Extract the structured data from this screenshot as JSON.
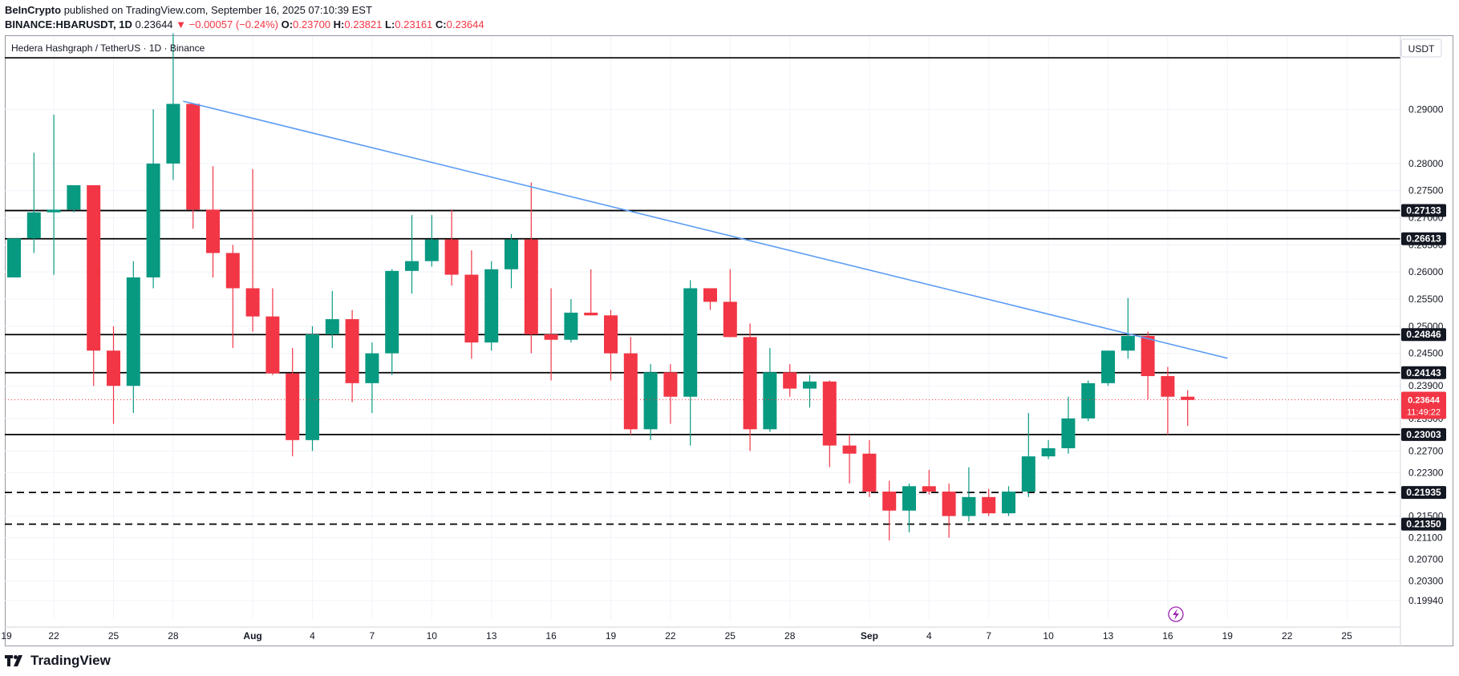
{
  "header": {
    "line1": {
      "author": "BeInCrypto",
      "published": "published on TradingView.com, September 16, 2025 07:10:39 EST"
    },
    "line2": {
      "symbol": "BINANCE:HBARUSDT, 1D",
      "last": "0.23644",
      "change": "▼ −0.00057 (−0.24%)",
      "o_label": "O:",
      "o": "0.23700",
      "h_label": "H:",
      "h": "0.23821",
      "l_label": "L:",
      "l": "0.23161",
      "c_label": "C:",
      "c": "0.23644"
    }
  },
  "footer": {
    "brand": "TradingView"
  },
  "colors": {
    "up": "#089981",
    "down": "#f23645",
    "trend": "#5b9cf6",
    "level": "#000000",
    "grid": "#f0f3fa"
  },
  "chart_data": {
    "type": "candlestick",
    "title": "Hedera Hashgraph / TetherUS · 1D · Binance",
    "currency_label": "USDT",
    "ylim": [
      0.196,
      0.3035
    ],
    "y_ticks": [
      "0.29000",
      "0.28000",
      "0.27500",
      "0.27000",
      "0.26500",
      "0.26000",
      "0.25500",
      "0.25000",
      "0.24500",
      "0.23900",
      "0.23300",
      "0.22700",
      "0.22300",
      "0.21900",
      "0.21500",
      "0.21100",
      "0.20700",
      "0.20300",
      "0.19940"
    ],
    "x_ticks": [
      {
        "i": -1,
        "label": "19"
      },
      {
        "i": 2,
        "label": "22"
      },
      {
        "i": 5,
        "label": "25"
      },
      {
        "i": 8,
        "label": "28"
      },
      {
        "i": 12,
        "label": "Aug"
      },
      {
        "i": 15,
        "label": "4"
      },
      {
        "i": 18,
        "label": "7"
      },
      {
        "i": 21,
        "label": "10"
      },
      {
        "i": 24,
        "label": "13"
      },
      {
        "i": 27,
        "label": "16"
      },
      {
        "i": 30,
        "label": "19"
      },
      {
        "i": 33,
        "label": "22"
      },
      {
        "i": 36,
        "label": "25"
      },
      {
        "i": 39,
        "label": "28"
      },
      {
        "i": 43,
        "label": "Sep"
      },
      {
        "i": 46,
        "label": "4"
      },
      {
        "i": 49,
        "label": "7"
      },
      {
        "i": 52,
        "label": "10"
      },
      {
        "i": 55,
        "label": "13"
      },
      {
        "i": 58,
        "label": "16"
      },
      {
        "i": 61,
        "label": "19"
      },
      {
        "i": 64,
        "label": "22"
      },
      {
        "i": 67,
        "label": "25"
      }
    ],
    "candles": [
      {
        "o": 0.259,
        "h": 0.266,
        "l": 0.259,
        "c": 0.2662
      },
      {
        "o": 0.2662,
        "h": 0.282,
        "l": 0.2635,
        "c": 0.271
      },
      {
        "o": 0.271,
        "h": 0.289,
        "l": 0.2595,
        "c": 0.2715
      },
      {
        "o": 0.2715,
        "h": 0.276,
        "l": 0.271,
        "c": 0.276
      },
      {
        "o": 0.276,
        "h": 0.276,
        "l": 0.239,
        "c": 0.2455
      },
      {
        "o": 0.2455,
        "h": 0.25,
        "l": 0.232,
        "c": 0.239
      },
      {
        "o": 0.239,
        "h": 0.262,
        "l": 0.234,
        "c": 0.259
      },
      {
        "o": 0.259,
        "h": 0.29,
        "l": 0.257,
        "c": 0.28
      },
      {
        "o": 0.28,
        "h": 0.304,
        "l": 0.277,
        "c": 0.291
      },
      {
        "o": 0.291,
        "h": 0.291,
        "l": 0.268,
        "c": 0.2715
      },
      {
        "o": 0.2715,
        "h": 0.2795,
        "l": 0.259,
        "c": 0.2635
      },
      {
        "o": 0.2635,
        "h": 0.265,
        "l": 0.246,
        "c": 0.257
      },
      {
        "o": 0.257,
        "h": 0.279,
        "l": 0.249,
        "c": 0.2518
      },
      {
        "o": 0.2518,
        "h": 0.257,
        "l": 0.241,
        "c": 0.2413
      },
      {
        "o": 0.2413,
        "h": 0.246,
        "l": 0.226,
        "c": 0.229
      },
      {
        "o": 0.229,
        "h": 0.25,
        "l": 0.227,
        "c": 0.2485
      },
      {
        "o": 0.2485,
        "h": 0.2565,
        "l": 0.246,
        "c": 0.2513
      },
      {
        "o": 0.2513,
        "h": 0.253,
        "l": 0.236,
        "c": 0.2395
      },
      {
        "o": 0.2395,
        "h": 0.247,
        "l": 0.234,
        "c": 0.245
      },
      {
        "o": 0.245,
        "h": 0.2605,
        "l": 0.241,
        "c": 0.2602
      },
      {
        "o": 0.2602,
        "h": 0.2705,
        "l": 0.256,
        "c": 0.262
      },
      {
        "o": 0.262,
        "h": 0.2705,
        "l": 0.261,
        "c": 0.266
      },
      {
        "o": 0.266,
        "h": 0.2715,
        "l": 0.2575,
        "c": 0.2595
      },
      {
        "o": 0.2595,
        "h": 0.264,
        "l": 0.244,
        "c": 0.247
      },
      {
        "o": 0.247,
        "h": 0.262,
        "l": 0.2455,
        "c": 0.2605
      },
      {
        "o": 0.2605,
        "h": 0.267,
        "l": 0.257,
        "c": 0.266
      },
      {
        "o": 0.266,
        "h": 0.2765,
        "l": 0.245,
        "c": 0.2485
      },
      {
        "o": 0.2485,
        "h": 0.257,
        "l": 0.24,
        "c": 0.2475
      },
      {
        "o": 0.2475,
        "h": 0.255,
        "l": 0.247,
        "c": 0.2525
      },
      {
        "o": 0.2525,
        "h": 0.2605,
        "l": 0.252,
        "c": 0.252
      },
      {
        "o": 0.252,
        "h": 0.253,
        "l": 0.24,
        "c": 0.245
      },
      {
        "o": 0.245,
        "h": 0.248,
        "l": 0.23,
        "c": 0.231
      },
      {
        "o": 0.231,
        "h": 0.243,
        "l": 0.229,
        "c": 0.2415
      },
      {
        "o": 0.2415,
        "h": 0.243,
        "l": 0.232,
        "c": 0.237
      },
      {
        "o": 0.237,
        "h": 0.2585,
        "l": 0.228,
        "c": 0.257
      },
      {
        "o": 0.257,
        "h": 0.257,
        "l": 0.253,
        "c": 0.2545
      },
      {
        "o": 0.2545,
        "h": 0.2605,
        "l": 0.248,
        "c": 0.248
      },
      {
        "o": 0.248,
        "h": 0.2505,
        "l": 0.227,
        "c": 0.231
      },
      {
        "o": 0.231,
        "h": 0.246,
        "l": 0.2305,
        "c": 0.2415
      },
      {
        "o": 0.2415,
        "h": 0.243,
        "l": 0.237,
        "c": 0.2385
      },
      {
        "o": 0.2385,
        "h": 0.241,
        "l": 0.235,
        "c": 0.2398
      },
      {
        "o": 0.2398,
        "h": 0.24,
        "l": 0.224,
        "c": 0.228
      },
      {
        "o": 0.228,
        "h": 0.23,
        "l": 0.221,
        "c": 0.2265
      },
      {
        "o": 0.2265,
        "h": 0.229,
        "l": 0.2185,
        "c": 0.2195
      },
      {
        "o": 0.2195,
        "h": 0.2215,
        "l": 0.2105,
        "c": 0.216
      },
      {
        "o": 0.216,
        "h": 0.221,
        "l": 0.212,
        "c": 0.2205
      },
      {
        "o": 0.2205,
        "h": 0.2235,
        "l": 0.219,
        "c": 0.2195
      },
      {
        "o": 0.2195,
        "h": 0.221,
        "l": 0.211,
        "c": 0.215
      },
      {
        "o": 0.215,
        "h": 0.224,
        "l": 0.214,
        "c": 0.2185
      },
      {
        "o": 0.2185,
        "h": 0.22,
        "l": 0.215,
        "c": 0.2155
      },
      {
        "o": 0.2155,
        "h": 0.2205,
        "l": 0.215,
        "c": 0.2195
      },
      {
        "o": 0.2195,
        "h": 0.234,
        "l": 0.2185,
        "c": 0.226
      },
      {
        "o": 0.226,
        "h": 0.229,
        "l": 0.2255,
        "c": 0.2275
      },
      {
        "o": 0.2275,
        "h": 0.237,
        "l": 0.2265,
        "c": 0.233
      },
      {
        "o": 0.233,
        "h": 0.24,
        "l": 0.2325,
        "c": 0.2395
      },
      {
        "o": 0.2395,
        "h": 0.245,
        "l": 0.239,
        "c": 0.2455
      },
      {
        "o": 0.2455,
        "h": 0.2552,
        "l": 0.244,
        "c": 0.2482
      },
      {
        "o": 0.2482,
        "h": 0.249,
        "l": 0.2365,
        "c": 0.2408
      },
      {
        "o": 0.2408,
        "h": 0.2425,
        "l": 0.23,
        "c": 0.237
      },
      {
        "o": 0.237,
        "h": 0.2382,
        "l": 0.2316,
        "c": 0.2364
      }
    ],
    "levels": [
      {
        "value": 0.27133,
        "label": "0.27133",
        "style": "solid"
      },
      {
        "value": 0.26613,
        "label": "0.26613",
        "style": "solid"
      },
      {
        "value": 0.24846,
        "label": "0.24846",
        "style": "solid"
      },
      {
        "value": 0.24143,
        "label": "0.24143",
        "style": "solid"
      },
      {
        "value": 0.23003,
        "label": "0.23003",
        "style": "solid"
      },
      {
        "value": 0.21935,
        "label": "0.21935",
        "style": "dashed"
      },
      {
        "value": 0.2135,
        "label": "0.21350",
        "style": "dashed"
      }
    ],
    "top_line": {
      "value": 0.2995
    },
    "trendline": {
      "from": {
        "i": 8.5,
        "v": 0.2915
      },
      "to": {
        "i": 61,
        "v": 0.2441
      }
    },
    "current_price": {
      "value": 0.23644,
      "label": "0.23644",
      "countdown": "11:49:22"
    }
  }
}
